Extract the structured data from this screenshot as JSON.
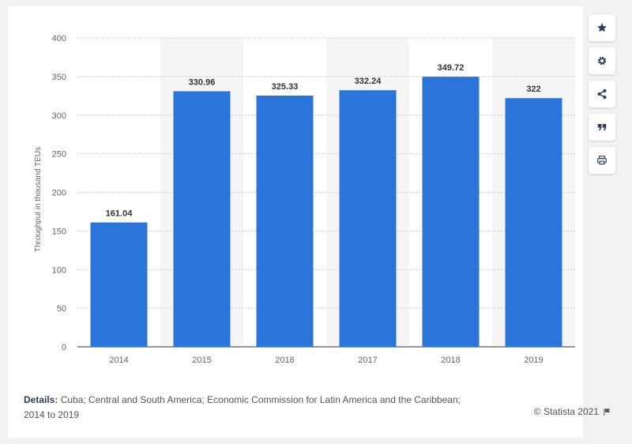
{
  "chart_data": {
    "type": "bar",
    "categories": [
      "2014",
      "2015",
      "2016",
      "2017",
      "2018",
      "2019"
    ],
    "values": [
      161.04,
      330.96,
      325.33,
      332.24,
      349.72,
      322
    ],
    "value_labels": [
      "161.04",
      "330.96",
      "325.33",
      "332.24",
      "349.72",
      "322"
    ],
    "ylabel": "Throughput in thousand TEUs",
    "ylim": [
      0,
      400
    ],
    "yticks": [
      0,
      50,
      100,
      150,
      200,
      250,
      300,
      350,
      400
    ],
    "grid": true,
    "bar_color": "#2b74d9",
    "alt_band_color": "#f5f5f5"
  },
  "details": {
    "title": "Details:",
    "text": "Cuba; Central and South America; Economic Commission for Latin America and the Caribbean; 2014 to 2019"
  },
  "copyright": "© Statista 2021",
  "sidebar": {
    "icons": [
      "star-icon",
      "gear-icon",
      "share-icon",
      "quote-icon",
      "print-icon"
    ]
  },
  "colors": {
    "icon": "#2f3f5f",
    "text": "#555555"
  }
}
